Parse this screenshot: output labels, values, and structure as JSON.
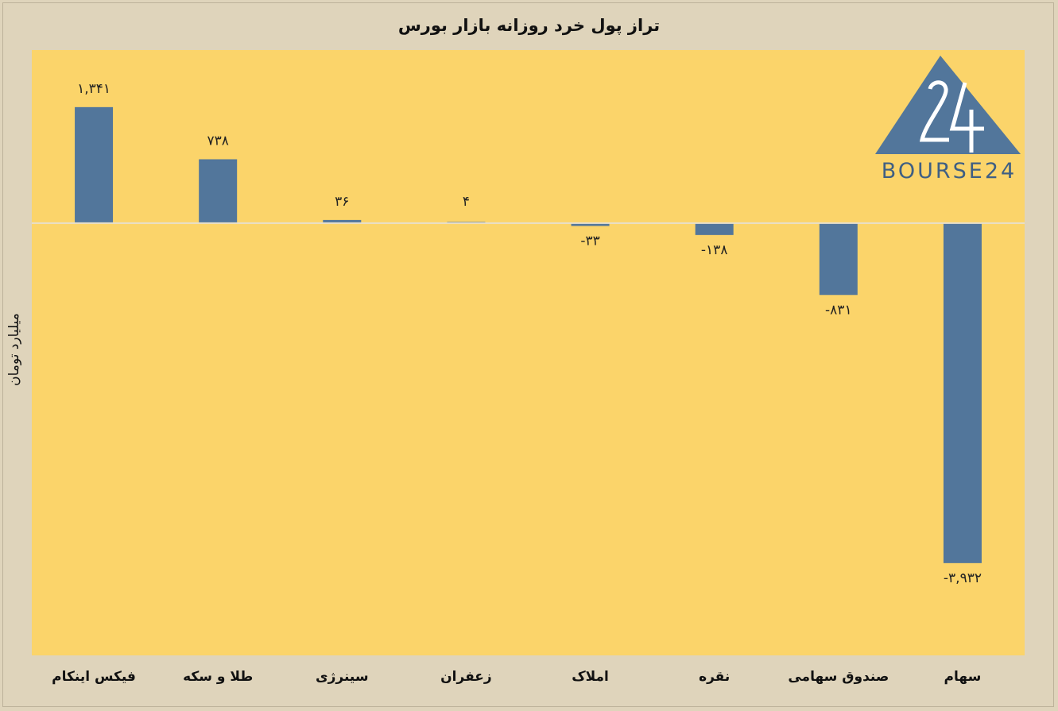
{
  "chart_data": {
    "type": "bar",
    "title": "تراز پول خرد روزانه بازار بورس",
    "ylabel": "میلیارد تومان",
    "categories": [
      "فیکس اینکام",
      "طلا و سکه",
      "سینرژی",
      "زعفران",
      "املاک",
      "نقره",
      "صندوق سهامی",
      "سهام"
    ],
    "values": [
      1341,
      738,
      36,
      4,
      -33,
      -138,
      -831,
      -3932
    ],
    "data_labels": [
      "۱,۳۴۱",
      "۷۳۸",
      "۳۶",
      "۴",
      "-۳۳",
      "-۱۳۸",
      "-۸۳۱",
      "-۳,۹۳۲"
    ],
    "ylim": [
      -4999,
      2001
    ],
    "grid": false,
    "colors": {
      "bar": "#52769b",
      "plot_background": "#fbd46a",
      "page_background": "#dfd4bb"
    }
  },
  "logo": {
    "text": "BOURSE24",
    "number": "24"
  }
}
